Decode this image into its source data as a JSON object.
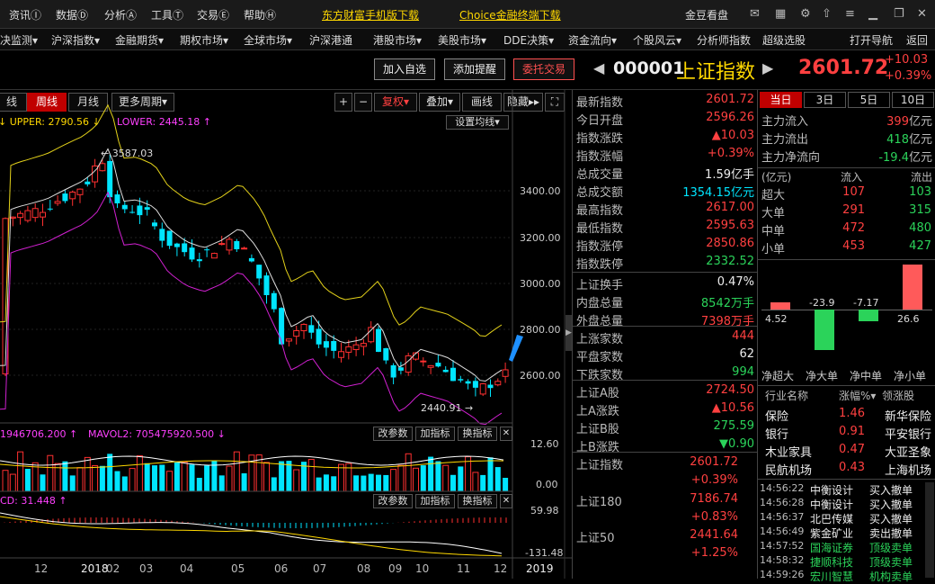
{
  "menubar": {
    "items": [
      "资讯",
      "数据",
      "分析",
      "工具",
      "交易",
      "帮助"
    ],
    "shortcuts": [
      "Ⓘ",
      "Ⓓ",
      "Ⓐ",
      "Ⓣ",
      "Ⓔ",
      "Ⓗ"
    ],
    "link1": "东方财富手机版下载",
    "link2": "Choice金融终端下载",
    "brand": "金豆看盘"
  },
  "navbar": [
    "决监测▾",
    "沪深指数▾",
    "金融期货▾",
    "期权市场▾",
    "全球市场▾",
    "沪深港通",
    "港股市场▾",
    "美股市场▾",
    "DDE决策▾",
    "资金流向▾",
    "个股风云▾",
    "分析师指数",
    "超级选股",
    "打开导航",
    "返回"
  ],
  "titlebar": {
    "add_watch": "加入自选",
    "add_alert": "添加提醒",
    "trade": "委托交易",
    "code": "000001",
    "name": "上证指数",
    "price": "2601.72",
    "change": "+10.03",
    "pct": "+0.39%"
  },
  "chart": {
    "periods": [
      "线",
      "周线",
      "月线",
      "更多周期▾"
    ],
    "tools": [
      "+",
      "−",
      "复权▾",
      "叠加▾",
      "画线",
      "隐藏▸▸"
    ],
    "upper_label": "UPPER: 2790.56",
    "lower_label": "LOWER: 2445.18",
    "settings": "设置均线▾",
    "high_label": "3587.03",
    "low_label": "2440.91",
    "y_ticks": [
      "3400.00",
      "3200.00",
      "3000.00",
      "2800.00",
      "2600.00"
    ],
    "vol_label1": "1946706.200",
    "vol_label2": "MAVOL2: 705475920.500",
    "vol_ticks": [
      "12.60",
      "0.00"
    ],
    "macd_label": "CD: 31.448",
    "macd_ticks": [
      "59.98",
      "-131.48"
    ],
    "ind_btns": [
      "改参数",
      "加指标",
      "换指标",
      "✕"
    ],
    "x_ticks": [
      "12",
      "2018",
      "02",
      "03",
      "04",
      "05",
      "06",
      "07",
      "08",
      "09",
      "10",
      "11",
      "12",
      "2019",
      "03"
    ]
  },
  "quote": {
    "rows1": [
      {
        "label": "最新指数",
        "value": "2601.72",
        "color": "red"
      },
      {
        "label": "今日开盘",
        "value": "2596.26",
        "color": "red"
      },
      {
        "label": "指数涨跌",
        "value": "▲10.03",
        "color": "red"
      },
      {
        "label": "指数涨幅",
        "value": "+0.39%",
        "color": "red"
      },
      {
        "label": "总成交量",
        "value": "1.59亿手",
        "color": "white"
      },
      {
        "label": "总成交额",
        "value": "1354.15亿元",
        "color": "cyan"
      },
      {
        "label": "最高指数",
        "value": "2617.00",
        "color": "red"
      },
      {
        "label": "最低指数",
        "value": "2595.63",
        "color": "red"
      },
      {
        "label": "指数涨停",
        "value": "2850.86",
        "color": "red"
      },
      {
        "label": "指数跌停",
        "value": "2332.52",
        "color": "green"
      }
    ],
    "rows2": [
      {
        "label": "上证换手",
        "value": "0.47%",
        "color": "white"
      },
      {
        "label": "内盘总量",
        "value": "8542万手",
        "color": "green"
      },
      {
        "label": "外盘总量",
        "value": "7398万手",
        "color": "red"
      }
    ],
    "rows3": [
      {
        "label": "上涨家数",
        "value": "444",
        "color": "red"
      },
      {
        "label": "平盘家数",
        "value": "62",
        "color": "white"
      },
      {
        "label": "下跌家数",
        "value": "994",
        "color": "green"
      }
    ],
    "rows4": [
      {
        "label": "上证A股",
        "value": "2724.50",
        "color": "red"
      },
      {
        "label": "上A涨跌",
        "value": "▲10.56",
        "color": "red"
      },
      {
        "label": "上证B股",
        "value": "275.59",
        "color": "green"
      },
      {
        "label": "上B涨跌",
        "value": "▼0.90",
        "color": "green"
      }
    ],
    "rows5": [
      {
        "label": "上证指数",
        "value": "2601.72",
        "color": "red"
      },
      {
        "label": "",
        "value": "+0.39%",
        "color": "red"
      },
      {
        "label": "上证180",
        "value": "7186.74",
        "color": "red"
      },
      {
        "label": "",
        "value": "+0.83%",
        "color": "red"
      },
      {
        "label": "上证50",
        "value": "2441.64",
        "color": "red"
      },
      {
        "label": "",
        "value": "+1.25%",
        "color": "red"
      }
    ]
  },
  "flow": {
    "tabs": [
      "当日",
      "3日",
      "5日",
      "10日"
    ],
    "main": [
      {
        "label": "主力流入",
        "value": "399",
        "unit": "亿元",
        "color": "red"
      },
      {
        "label": "主力流出",
        "value": "418",
        "unit": "亿元",
        "color": "green"
      },
      {
        "label": "主力净流向",
        "value": "-19.4",
        "unit": "亿元",
        "color": "green"
      }
    ],
    "head": [
      "(亿元)",
      "流入",
      "流出"
    ],
    "rows": [
      {
        "label": "超大",
        "in": "107",
        "out": "103"
      },
      {
        "label": "大单",
        "in": "291",
        "out": "315"
      },
      {
        "label": "中单",
        "in": "472",
        "out": "480"
      },
      {
        "label": "小单",
        "in": "453",
        "out": "427"
      }
    ],
    "bars": [
      {
        "label": "净超大",
        "value": 4.52,
        "text": "4.52"
      },
      {
        "label": "净大单",
        "value": -23.9,
        "text": "-23.9"
      },
      {
        "label": "净中单",
        "value": -7.17,
        "text": "-7.17"
      },
      {
        "label": "净小单",
        "value": 26.6,
        "text": "26.6"
      }
    ],
    "ind_head": [
      "行业名称",
      "涨幅%▾",
      "领涨股"
    ],
    "industries": [
      {
        "name": "保险",
        "pct": "1.46",
        "lead": "新华保险"
      },
      {
        "name": "银行",
        "pct": "0.91",
        "lead": "平安银行"
      },
      {
        "name": "木业家具",
        "pct": "0.47",
        "lead": "大亚圣象"
      },
      {
        "name": "民航机场",
        "pct": "0.43",
        "lead": "上海机场"
      }
    ],
    "ticks": [
      {
        "time": "14:56:22",
        "name": "中衡设计",
        "act": "买入撤单",
        "c": "white"
      },
      {
        "time": "14:56:28",
        "name": "中衡设计",
        "act": "买入撤单",
        "c": "white"
      },
      {
        "time": "14:56:37",
        "name": "北巴传媒",
        "act": "买入撤单",
        "c": "white"
      },
      {
        "time": "14:56:49",
        "name": "紫金矿业",
        "act": "卖出撤单",
        "c": "white"
      },
      {
        "time": "14:57:52",
        "name": "国海证券",
        "act": "顶级卖单",
        "c": "green"
      },
      {
        "time": "14:58:32",
        "name": "捷顺科技",
        "act": "顶级卖单",
        "c": "green"
      },
      {
        "time": "14:59:26",
        "name": "宏川智慧",
        "act": "机构卖单",
        "c": "green"
      }
    ]
  }
}
